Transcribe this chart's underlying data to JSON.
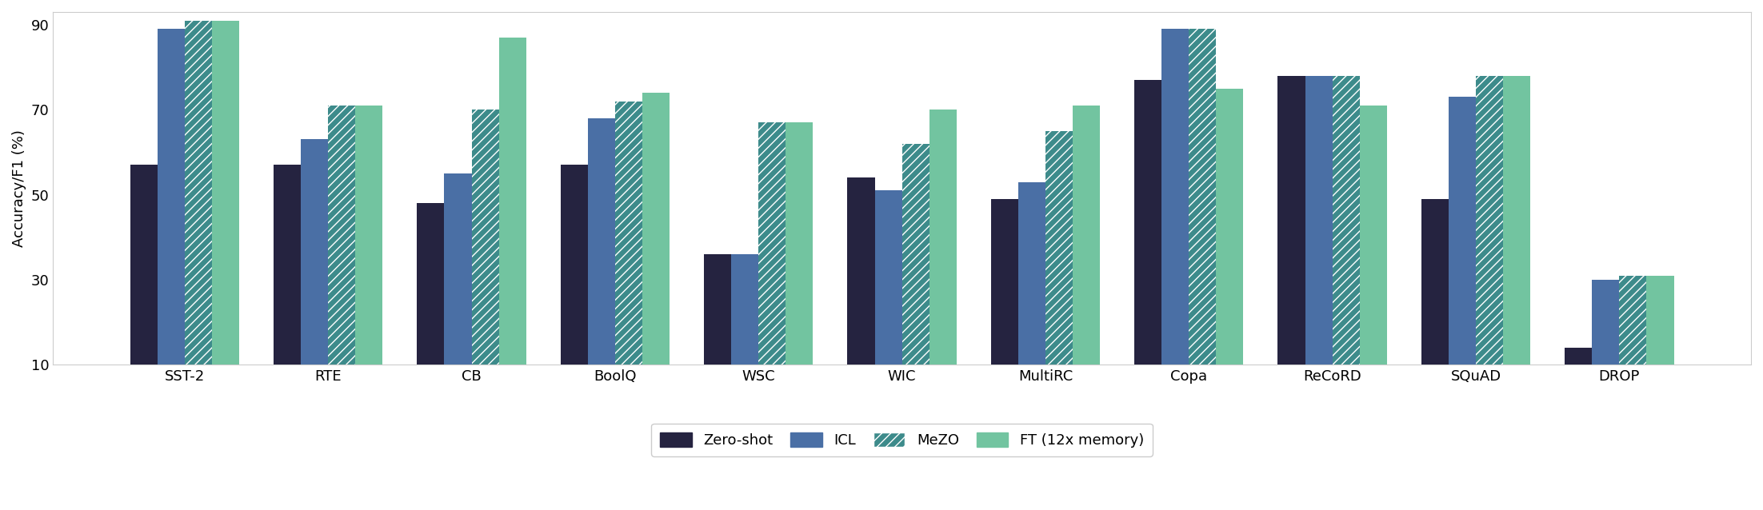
{
  "categories": [
    "SST-2",
    "RTE",
    "CB",
    "BoolQ",
    "WSC",
    "WIC",
    "MultiRC",
    "Copa",
    "ReCoRD",
    "SQuAD",
    "DROP"
  ],
  "zero_shot": [
    57,
    57,
    48,
    57,
    36,
    54,
    49,
    77,
    78,
    49,
    14
  ],
  "icl": [
    89,
    63,
    55,
    68,
    36,
    51,
    53,
    89,
    78,
    73,
    30
  ],
  "mezo": [
    91,
    71,
    70,
    72,
    67,
    62,
    65,
    89,
    78,
    78,
    31
  ],
  "ft": [
    91,
    71,
    87,
    74,
    67,
    70,
    71,
    75,
    71,
    78,
    31
  ],
  "colors": {
    "zero_shot": "#252340",
    "icl": "#4a6fa5",
    "mezo": "#3d8b8b",
    "ft": "#72c4a0"
  },
  "ylabel": "Accuracy/F1 (%)",
  "ylim": [
    10,
    93
  ],
  "yticks": [
    10,
    30,
    50,
    70,
    90
  ],
  "legend_labels": [
    "Zero-shot",
    "ICL",
    "MeZO",
    "FT (12x memory)"
  ],
  "bar_width": 0.19,
  "hatch_pattern": "///",
  "hatch_color": "white"
}
